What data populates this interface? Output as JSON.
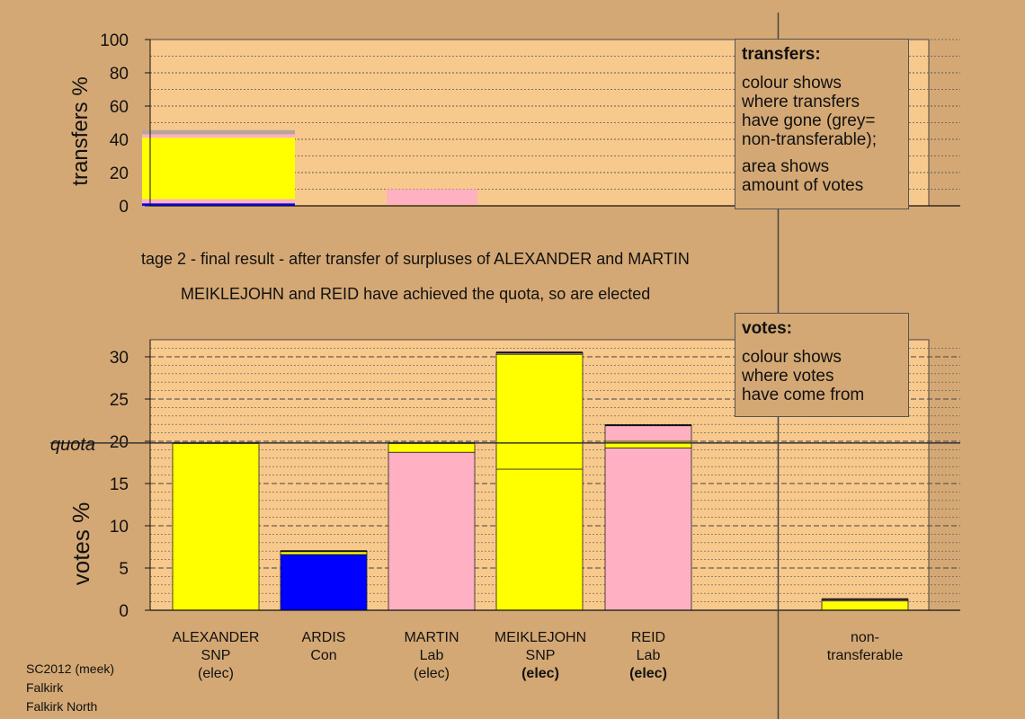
{
  "top_chart": {
    "ylabel": "transfers %",
    "y_ticks": [
      "0",
      "20",
      "40",
      "60",
      "80",
      "100"
    ]
  },
  "bottom_chart": {
    "ylabel": "votes %",
    "y_ticks": [
      "0",
      "5",
      "10",
      "15",
      "20",
      "25",
      "30"
    ],
    "quota_label": "quota"
  },
  "transfers_box": {
    "title": "transfers:",
    "lines1": [
      "colour shows",
      "where transfers",
      "have gone (grey=",
      "non-transferable);"
    ],
    "lines2": [
      "area shows",
      "amount of votes"
    ]
  },
  "votes_box": {
    "title": "votes:",
    "lines": [
      "colour shows",
      "where votes",
      "have come from"
    ]
  },
  "stage_line1": "tage 2 - final result - after transfer of surpluses of ALEXANDER and MARTIN",
  "stage_line2": "MEIKLEJOHN and REID have achieved the quota, so are elected",
  "candidates": [
    {
      "name": "ALEXANDER",
      "party": "SNP",
      "status": "(elec)",
      "bold": false
    },
    {
      "name": "ARDIS",
      "party": "Con",
      "status": "",
      "bold": false
    },
    {
      "name": "MARTIN",
      "party": "Lab",
      "status": "(elec)",
      "bold": false
    },
    {
      "name": "MEIKLEJOHN",
      "party": "SNP",
      "status": "(elec)",
      "bold": true
    },
    {
      "name": "REID",
      "party": "Lab",
      "status": "(elec)",
      "bold": true
    }
  ],
  "nontransferable_label": [
    "non-",
    "transferable"
  ],
  "footer": [
    "SC2012 (meek)",
    "Falkirk",
    "Falkirk North"
  ],
  "colors": {
    "background": "#d4a874",
    "plot_bg": "#f8c98c",
    "SNP": "#ffff00",
    "Con": "#0000ff",
    "Lab": "#ffb0c2",
    "nontransferable": "#b8a59a"
  },
  "chart_data": [
    {
      "type": "bar",
      "name": "transfers",
      "ylabel": "transfers %",
      "ylim": [
        0,
        100
      ],
      "bars": [
        {
          "source": "ALEXANDER",
          "stack": [
            {
              "to": "ARDIS",
              "color": "Con",
              "value": 1.5
            },
            {
              "to": "MARTIN",
              "color": "Lab",
              "value": 2.5
            },
            {
              "to": "MEIKLEJOHN",
              "color": "SNP",
              "value": 37
            },
            {
              "to": "REID",
              "color": "Lab",
              "value": 2
            },
            {
              "to": "non-transferable",
              "color": "nontransferable",
              "value": 2.5
            }
          ]
        },
        {
          "source": "MARTIN",
          "stack": [
            {
              "to": "MEIKLEJOHN",
              "color": "SNP",
              "value": 0.5
            },
            {
              "to": "REID",
              "color": "Lab",
              "value": 9.5
            }
          ]
        }
      ]
    },
    {
      "type": "bar",
      "name": "votes",
      "ylabel": "votes %",
      "ylim": [
        0,
        31
      ],
      "quota": 19.8,
      "categories": [
        "ALEXANDER",
        "ARDIS",
        "MARTIN",
        "MEIKLEJOHN",
        "REID",
        "non-transferable"
      ],
      "stacks": [
        [
          {
            "color": "SNP",
            "value": 19.8
          }
        ],
        [
          {
            "color": "Con",
            "value": 6.6
          },
          {
            "color": "SNP",
            "value": 0.4
          }
        ],
        [
          {
            "color": "Lab",
            "value": 18.7
          },
          {
            "color": "SNP",
            "value": 1.1
          }
        ],
        [
          {
            "color": "SNP",
            "value": 16.7
          },
          {
            "color": "SNP",
            "value": 13.6
          },
          {
            "color": "Lab",
            "value": 0.2
          }
        ],
        [
          {
            "color": "Lab",
            "value": 19.2
          },
          {
            "color": "SNP",
            "value": 0.8
          },
          {
            "color": "Lab",
            "value": 1.9
          }
        ],
        [
          {
            "color": "SNP",
            "value": 1.1
          },
          {
            "color": "Lab",
            "value": 0.2
          }
        ]
      ]
    }
  ]
}
